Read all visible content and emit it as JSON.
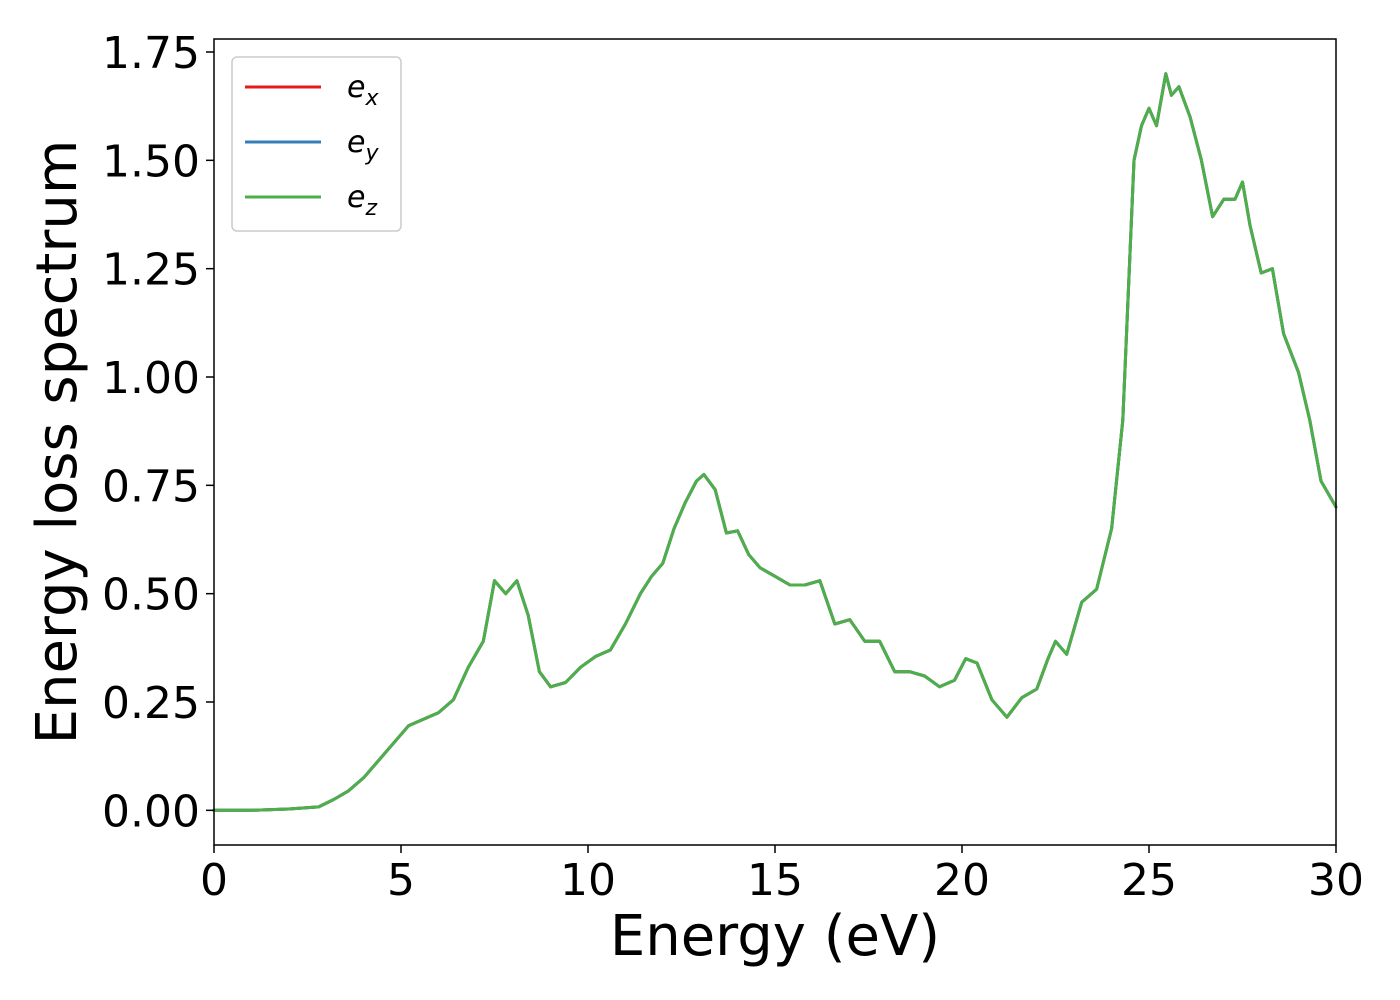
{
  "chart_data": {
    "type": "line",
    "title": "",
    "xlabel": "Energy (eV)",
    "ylabel": "Energy loss spectrum",
    "xlim": [
      0,
      30
    ],
    "ylim": [
      -0.08,
      1.78
    ],
    "xticks": [
      "0",
      "5",
      "10",
      "15",
      "20",
      "25",
      "30"
    ],
    "yticks": [
      "0.00",
      "0.25",
      "0.50",
      "0.75",
      "1.00",
      "1.25",
      "1.50",
      "1.75"
    ],
    "grid": false,
    "legend_position": "top-left",
    "x": [
      0,
      1,
      2,
      2.8,
      3.2,
      3.6,
      4.0,
      4.4,
      4.8,
      5.2,
      5.6,
      6.0,
      6.4,
      6.8,
      7.2,
      7.5,
      7.8,
      8.1,
      8.4,
      8.7,
      9.0,
      9.4,
      9.8,
      10.2,
      10.6,
      11.0,
      11.4,
      11.7,
      12.0,
      12.3,
      12.6,
      12.9,
      13.1,
      13.4,
      13.7,
      14.0,
      14.3,
      14.6,
      15.0,
      15.4,
      15.8,
      16.2,
      16.6,
      17.0,
      17.4,
      17.8,
      18.2,
      18.6,
      19.0,
      19.4,
      19.8,
      20.1,
      20.4,
      20.8,
      21.2,
      21.6,
      22.0,
      22.3,
      22.5,
      22.8,
      23.2,
      23.6,
      24.0,
      24.3,
      24.6,
      24.8,
      25.0,
      25.2,
      25.45,
      25.6,
      25.8,
      26.1,
      26.4,
      26.7,
      27.0,
      27.3,
      27.5,
      27.7,
      28.0,
      28.3,
      28.6,
      29.0,
      29.3,
      29.6,
      30.0
    ],
    "series": [
      {
        "name": "e_x",
        "label_base": "e",
        "label_sub": "x",
        "color": "#e41a1c",
        "values": [
          0,
          0,
          0.003,
          0.008,
          0.025,
          0.045,
          0.075,
          0.115,
          0.155,
          0.195,
          0.21,
          0.225,
          0.255,
          0.33,
          0.39,
          0.53,
          0.5,
          0.53,
          0.45,
          0.32,
          0.285,
          0.295,
          0.33,
          0.355,
          0.37,
          0.43,
          0.5,
          0.54,
          0.57,
          0.65,
          0.71,
          0.76,
          0.775,
          0.74,
          0.64,
          0.645,
          0.59,
          0.56,
          0.54,
          0.52,
          0.52,
          0.53,
          0.43,
          0.44,
          0.39,
          0.39,
          0.32,
          0.32,
          0.31,
          0.285,
          0.3,
          0.35,
          0.34,
          0.255,
          0.215,
          0.26,
          0.28,
          0.35,
          0.39,
          0.36,
          0.48,
          0.51,
          0.65,
          0.9,
          1.5,
          1.58,
          1.62,
          1.58,
          1.7,
          1.65,
          1.67,
          1.6,
          1.5,
          1.37,
          1.41,
          1.41,
          1.45,
          1.35,
          1.24,
          1.25,
          1.1,
          1.01,
          0.9,
          0.76,
          0.7
        ]
      },
      {
        "name": "e_y",
        "label_base": "e",
        "label_sub": "y",
        "color": "#377eb8",
        "values": [
          0,
          0,
          0.003,
          0.008,
          0.025,
          0.045,
          0.075,
          0.115,
          0.155,
          0.195,
          0.21,
          0.225,
          0.255,
          0.33,
          0.39,
          0.53,
          0.5,
          0.53,
          0.45,
          0.32,
          0.285,
          0.295,
          0.33,
          0.355,
          0.37,
          0.43,
          0.5,
          0.54,
          0.57,
          0.65,
          0.71,
          0.76,
          0.775,
          0.74,
          0.64,
          0.645,
          0.59,
          0.56,
          0.54,
          0.52,
          0.52,
          0.53,
          0.43,
          0.44,
          0.39,
          0.39,
          0.32,
          0.32,
          0.31,
          0.285,
          0.3,
          0.35,
          0.34,
          0.255,
          0.215,
          0.26,
          0.28,
          0.35,
          0.39,
          0.36,
          0.48,
          0.51,
          0.65,
          0.9,
          1.5,
          1.58,
          1.62,
          1.58,
          1.7,
          1.65,
          1.67,
          1.6,
          1.5,
          1.37,
          1.41,
          1.41,
          1.45,
          1.35,
          1.24,
          1.25,
          1.1,
          1.01,
          0.9,
          0.76,
          0.7
        ]
      },
      {
        "name": "e_z",
        "label_base": "e",
        "label_sub": "z",
        "color": "#4daf4a",
        "values": [
          0,
          0,
          0.003,
          0.008,
          0.025,
          0.045,
          0.075,
          0.115,
          0.155,
          0.195,
          0.21,
          0.225,
          0.255,
          0.33,
          0.39,
          0.53,
          0.5,
          0.53,
          0.45,
          0.32,
          0.285,
          0.295,
          0.33,
          0.355,
          0.37,
          0.43,
          0.5,
          0.54,
          0.57,
          0.65,
          0.71,
          0.76,
          0.775,
          0.74,
          0.64,
          0.645,
          0.59,
          0.56,
          0.54,
          0.52,
          0.52,
          0.53,
          0.43,
          0.44,
          0.39,
          0.39,
          0.32,
          0.32,
          0.31,
          0.285,
          0.3,
          0.35,
          0.34,
          0.255,
          0.215,
          0.26,
          0.28,
          0.35,
          0.39,
          0.36,
          0.48,
          0.51,
          0.65,
          0.9,
          1.5,
          1.58,
          1.62,
          1.58,
          1.7,
          1.65,
          1.67,
          1.6,
          1.5,
          1.37,
          1.41,
          1.41,
          1.45,
          1.35,
          1.24,
          1.25,
          1.1,
          1.01,
          0.9,
          0.76,
          0.7
        ]
      }
    ]
  }
}
